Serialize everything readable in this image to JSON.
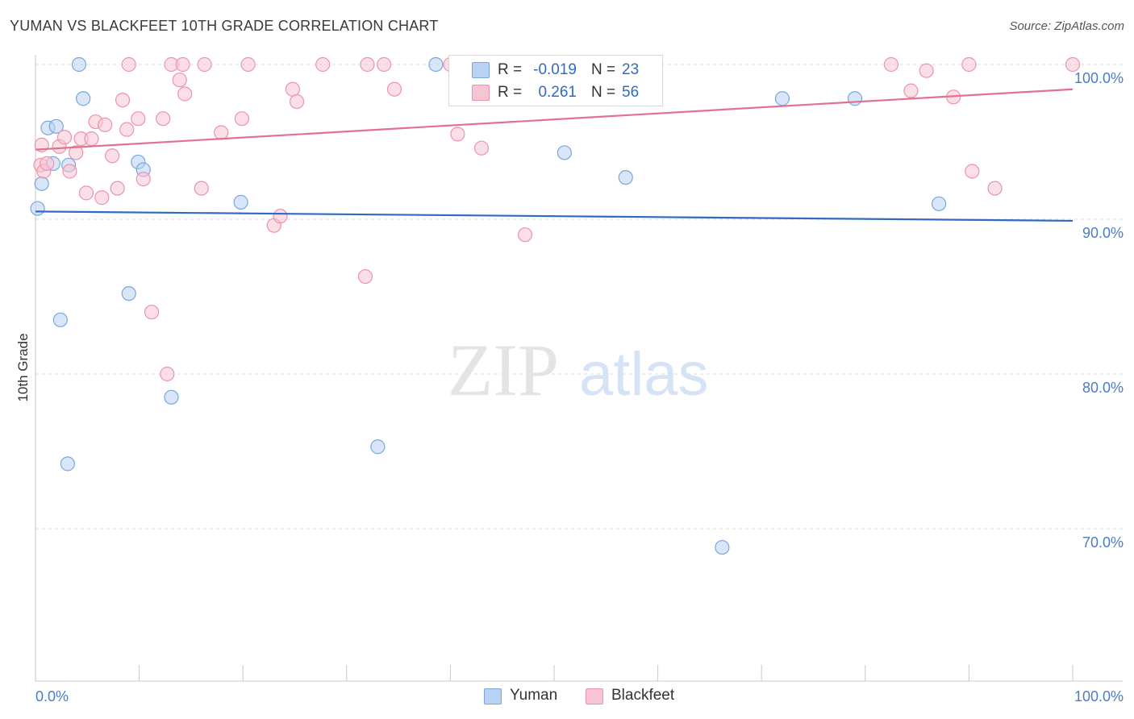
{
  "header": {
    "title": "YUMAN VS BLACKFEET 10TH GRADE CORRELATION CHART",
    "source": "Source: ZipAtlas.com"
  },
  "watermark": {
    "part1": "ZIP",
    "part2": "atlas"
  },
  "colors": {
    "yuman_fill": "#b8d2f3",
    "yuman_stroke": "#7aa6e0",
    "yuman_line": "#2f6bc4",
    "blackfeet_fill": "#f7c4d3",
    "blackfeet_stroke": "#ec93ae",
    "blackfeet_line": "#e4708f",
    "tick_text": "#4a7cc7",
    "grid": "#dcdcdc"
  },
  "legend": {
    "rows": [
      {
        "r_label": "R =",
        "r_value": "-0.019",
        "n_label": "N =",
        "n_value": "23"
      },
      {
        "r_label": "R =",
        "r_value": "0.261",
        "n_label": "N =",
        "n_value": "56"
      }
    ]
  },
  "bottom_legend": {
    "items": [
      "Yuman",
      "Blackfeet"
    ]
  },
  "chart_data": {
    "type": "scatter",
    "title": "YUMAN VS BLACKFEET 10TH GRADE CORRELATION CHART",
    "xlabel": "",
    "ylabel": "10th Grade",
    "xlim": [
      0,
      100
    ],
    "ylim": [
      60,
      100.5
    ],
    "x_tick_labels": [
      "0.0%",
      "100.0%"
    ],
    "y_ticks": [
      {
        "value": 100,
        "label": "100.0%"
      },
      {
        "value": 90,
        "label": "90.0%"
      },
      {
        "value": 80,
        "label": "80.0%"
      },
      {
        "value": 70,
        "label": "70.0%"
      }
    ],
    "grid": true,
    "legend_position": "top-center",
    "series": [
      {
        "name": "Yuman",
        "trend": [
          [
            0,
            90.5
          ],
          [
            100,
            89.9
          ]
        ],
        "points": [
          [
            0.2,
            90.7
          ],
          [
            0.6,
            92.3
          ],
          [
            1.2,
            95.9
          ],
          [
            1.7,
            93.6
          ],
          [
            2.0,
            96.0
          ],
          [
            2.4,
            83.5
          ],
          [
            3.1,
            74.2
          ],
          [
            3.2,
            93.5
          ],
          [
            4.2,
            100.0
          ],
          [
            4.6,
            97.8
          ],
          [
            9.0,
            85.2
          ],
          [
            9.9,
            93.7
          ],
          [
            10.4,
            93.2
          ],
          [
            13.1,
            78.5
          ],
          [
            19.8,
            91.1
          ],
          [
            33.0,
            75.3
          ],
          [
            38.6,
            100.0
          ],
          [
            51.0,
            94.3
          ],
          [
            56.9,
            92.7
          ],
          [
            66.2,
            68.8
          ],
          [
            72.0,
            97.8
          ],
          [
            79.0,
            97.8
          ],
          [
            87.1,
            91.0
          ]
        ]
      },
      {
        "name": "Blackfeet",
        "trend": [
          [
            0,
            94.5
          ],
          [
            100,
            98.4
          ]
        ],
        "points": [
          [
            0.5,
            93.5
          ],
          [
            0.6,
            94.8
          ],
          [
            0.8,
            93.1
          ],
          [
            1.1,
            93.6
          ],
          [
            2.3,
            94.7
          ],
          [
            2.8,
            95.3
          ],
          [
            3.3,
            93.1
          ],
          [
            3.9,
            94.3
          ],
          [
            4.4,
            95.2
          ],
          [
            4.9,
            91.7
          ],
          [
            5.4,
            95.2
          ],
          [
            5.8,
            96.3
          ],
          [
            6.4,
            91.4
          ],
          [
            6.7,
            96.1
          ],
          [
            7.4,
            94.1
          ],
          [
            7.9,
            92.0
          ],
          [
            8.4,
            97.7
          ],
          [
            8.8,
            95.8
          ],
          [
            9.0,
            100.0
          ],
          [
            9.9,
            96.5
          ],
          [
            10.4,
            92.6
          ],
          [
            11.2,
            84.0
          ],
          [
            12.3,
            96.5
          ],
          [
            12.7,
            80.0
          ],
          [
            13.1,
            100.0
          ],
          [
            13.9,
            99.0
          ],
          [
            14.2,
            100.0
          ],
          [
            14.4,
            98.1
          ],
          [
            16.0,
            92.0
          ],
          [
            16.3,
            100.0
          ],
          [
            17.9,
            95.6
          ],
          [
            19.9,
            96.5
          ],
          [
            20.5,
            100.0
          ],
          [
            23.0,
            89.6
          ],
          [
            23.6,
            90.2
          ],
          [
            24.8,
            98.4
          ],
          [
            25.2,
            97.6
          ],
          [
            27.7,
            100.0
          ],
          [
            31.8,
            86.3
          ],
          [
            32.0,
            100.0
          ],
          [
            33.6,
            100.0
          ],
          [
            34.6,
            98.4
          ],
          [
            40.0,
            100.0
          ],
          [
            40.7,
            95.5
          ],
          [
            43.0,
            94.6
          ],
          [
            46.7,
            100.0
          ],
          [
            47.2,
            89.0
          ],
          [
            50.0,
            100.0
          ],
          [
            82.5,
            100.0
          ],
          [
            84.4,
            98.3
          ],
          [
            85.9,
            99.6
          ],
          [
            90.0,
            100.0
          ],
          [
            90.3,
            93.1
          ],
          [
            92.5,
            92.0
          ],
          [
            100.0,
            100.0
          ],
          [
            88.5,
            97.9
          ]
        ]
      }
    ]
  }
}
